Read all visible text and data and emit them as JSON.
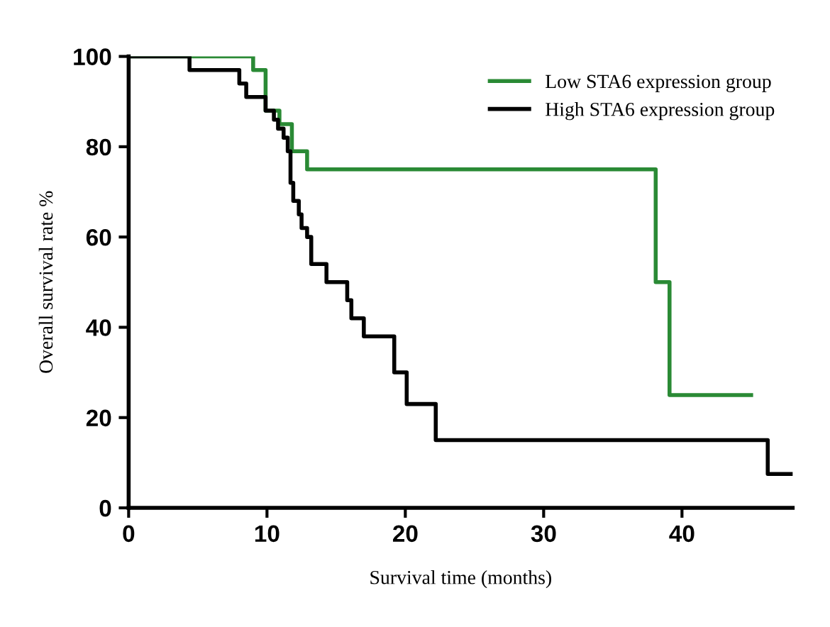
{
  "chart_data": {
    "type": "step",
    "xlabel": "Survival time (months)",
    "ylabel": "Overall survival rate %",
    "series": [
      {
        "name": "Low STA6 expression group",
        "color": "#2a8a35",
        "x": [
          0,
          9.0,
          9.9,
          10.9,
          11.8,
          12.9,
          38.1,
          39.1,
          45
        ],
        "values": [
          100,
          97,
          88,
          85,
          79,
          75,
          50,
          25,
          25
        ]
      },
      {
        "name": "High STA6 expression group",
        "color": "#000000",
        "x": [
          0,
          4.4,
          8.0,
          8.5,
          9.9,
          10.5,
          10.8,
          11.2,
          11.5,
          11.7,
          11.9,
          12.3,
          12.5,
          12.9,
          13.2,
          14.3,
          15.8,
          16.1,
          17.0,
          19.2,
          20.1,
          22.2,
          46.2,
          48
        ],
        "values": [
          100,
          97,
          94,
          91,
          88,
          86,
          84,
          82,
          79,
          72,
          68,
          65,
          62,
          60,
          54,
          50,
          46,
          42,
          38,
          30,
          23,
          15,
          7.5,
          7.5
        ]
      }
    ],
    "xlim": [
      0,
      48
    ],
    "ylim": [
      0,
      100
    ],
    "xticks": [
      0,
      10,
      20,
      30,
      40
    ],
    "yticks": [
      0,
      20,
      40,
      60,
      80,
      100
    ],
    "grid": false,
    "legend": "top right"
  }
}
